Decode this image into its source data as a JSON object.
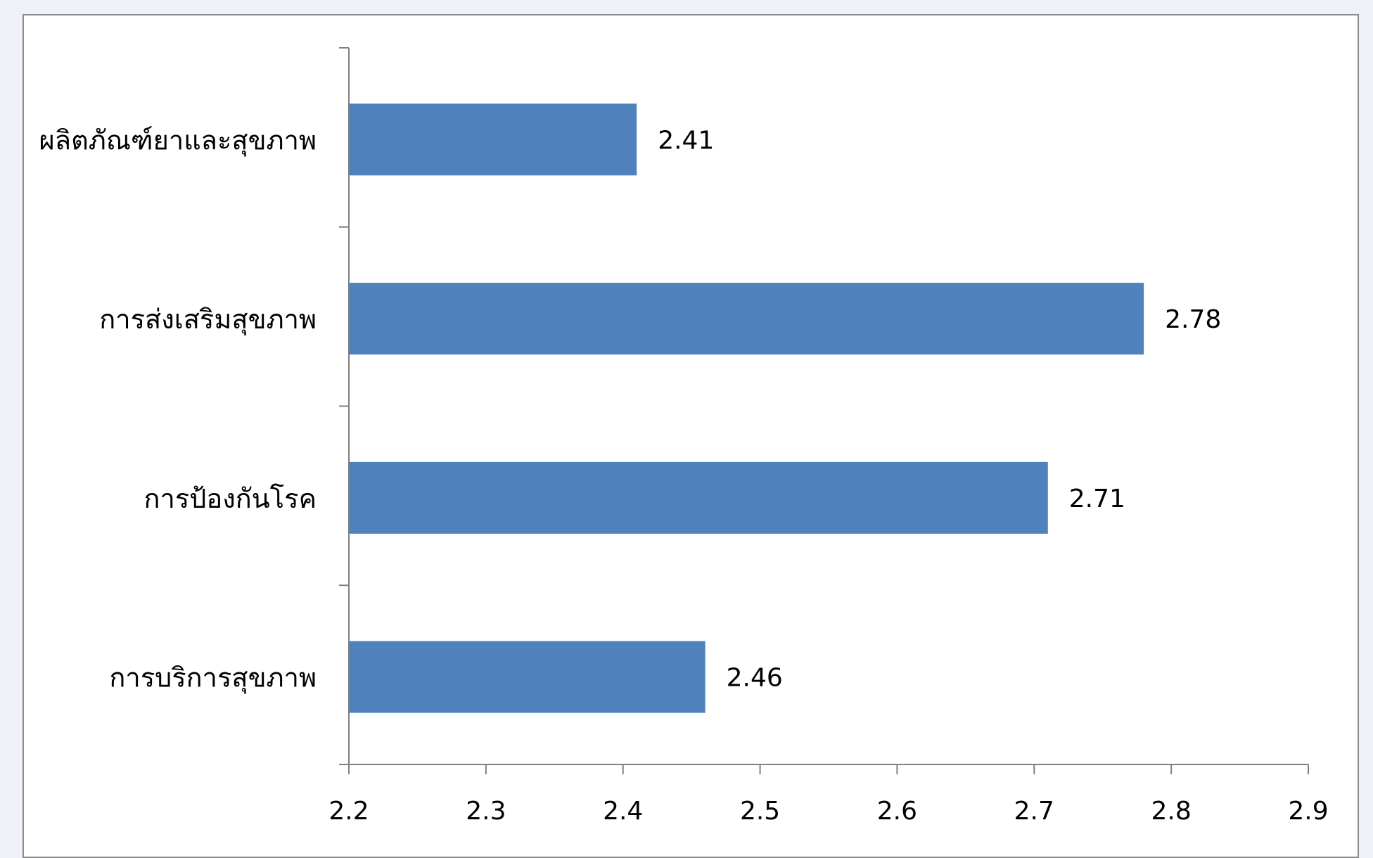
{
  "colors": {
    "bar": "#4f81bd",
    "axis": "#808080",
    "background": "#eef2f8"
  },
  "chart_data": {
    "type": "bar",
    "orientation": "horizontal",
    "categories": [
      "ผลิตภัณฑ์ยาและสุขภาพ",
      "การส่งเสริมสุขภาพ",
      "การป้องกันโรค",
      "การบริการสุขภาพ"
    ],
    "values": [
      2.41,
      2.78,
      2.71,
      2.46
    ],
    "data_labels": [
      "2.41",
      "2.78",
      "2.71",
      "2.46"
    ],
    "xlim": [
      2.2,
      2.9
    ],
    "xticks": [
      "2.2",
      "2.3",
      "2.4",
      "2.5",
      "2.6",
      "2.7",
      "2.8",
      "2.9"
    ],
    "grid": false,
    "legend": "none"
  }
}
